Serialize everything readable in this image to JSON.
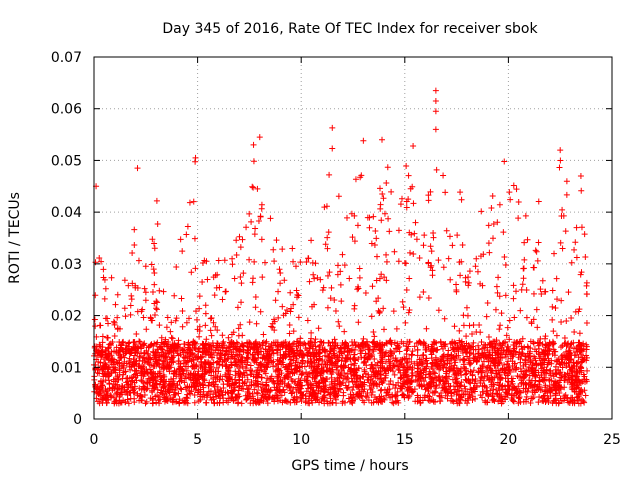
{
  "chart_data": {
    "type": "scatter",
    "title": "Day 345 of 2016, Rate Of TEC Index for receiver sbok",
    "xlabel": "GPS time / hours",
    "ylabel": "ROTI / TECUs",
    "xlim": [
      0,
      25
    ],
    "ylim": [
      0,
      0.07
    ],
    "x_ticks": [
      "0",
      "5",
      "10",
      "15",
      "20",
      "25"
    ],
    "y_ticks": [
      "0",
      "0.01",
      "0.02",
      "0.03",
      "0.04",
      "0.05",
      "0.06",
      "0.07"
    ],
    "grid": true,
    "marker": "plus",
    "color": "#ff0000",
    "series": [
      {
        "x_range": [
          0,
          23.8
        ],
        "baseline_range": [
          0.003,
          0.015
        ],
        "envelope": {
          "x": [
            0,
            0.1,
            0.2,
            0.5,
            1,
            1.3,
            1.7,
            2.1,
            2.6,
            3,
            3.5,
            4,
            4.4,
            4.9,
            5.2,
            5.6,
            6,
            6.5,
            7,
            7.4,
            7.8,
            8.1,
            8.5,
            9,
            9.5,
            10,
            10.5,
            11,
            11.4,
            11.7,
            12,
            12.5,
            13,
            13.6,
            14,
            14.5,
            15,
            15.5,
            16,
            16.5,
            16.7,
            17,
            17.5,
            18,
            18.5,
            19,
            19.5,
            20,
            20.5,
            21,
            21.5,
            22,
            22.4,
            22.8,
            23.2,
            23.5,
            23.8
          ],
          "y": [
            0.025,
            0.046,
            0.036,
            0.028,
            0.031,
            0.024,
            0.03,
            0.049,
            0.032,
            0.046,
            0.018,
            0.033,
            0.048,
            0.051,
            0.038,
            0.027,
            0.031,
            0.033,
            0.036,
            0.038,
            0.055,
            0.044,
            0.04,
            0.035,
            0.036,
            0.03,
            0.037,
            0.04,
            0.056,
            0.045,
            0.041,
            0.049,
            0.054,
            0.045,
            0.054,
            0.04,
            0.053,
            0.043,
            0.042,
            0.055,
            0.064,
            0.04,
            0.045,
            0.042,
            0.04,
            0.048,
            0.04,
            0.05,
            0.044,
            0.04,
            0.044,
            0.04,
            0.052,
            0.047,
            0.036,
            0.047,
            0.033
          ]
        },
        "outliers": [
          {
            "x": 16.5,
            "y": 0.0635
          },
          {
            "x": 16.5,
            "y": 0.0615
          },
          {
            "x": 16.5,
            "y": 0.0595
          },
          {
            "x": 16.5,
            "y": 0.056
          },
          {
            "x": 11.5,
            "y": 0.0563
          },
          {
            "x": 8.0,
            "y": 0.0545
          },
          {
            "x": 7.7,
            "y": 0.053
          },
          {
            "x": 13.0,
            "y": 0.0538
          },
          {
            "x": 13.9,
            "y": 0.054
          },
          {
            "x": 15.4,
            "y": 0.0528
          },
          {
            "x": 22.5,
            "y": 0.052
          },
          {
            "x": 19.8,
            "y": 0.0498
          },
          {
            "x": 4.9,
            "y": 0.0505
          },
          {
            "x": 2.1,
            "y": 0.0485
          },
          {
            "x": 0.1,
            "y": 0.045
          },
          {
            "x": 23.5,
            "y": 0.047
          }
        ]
      }
    ]
  }
}
